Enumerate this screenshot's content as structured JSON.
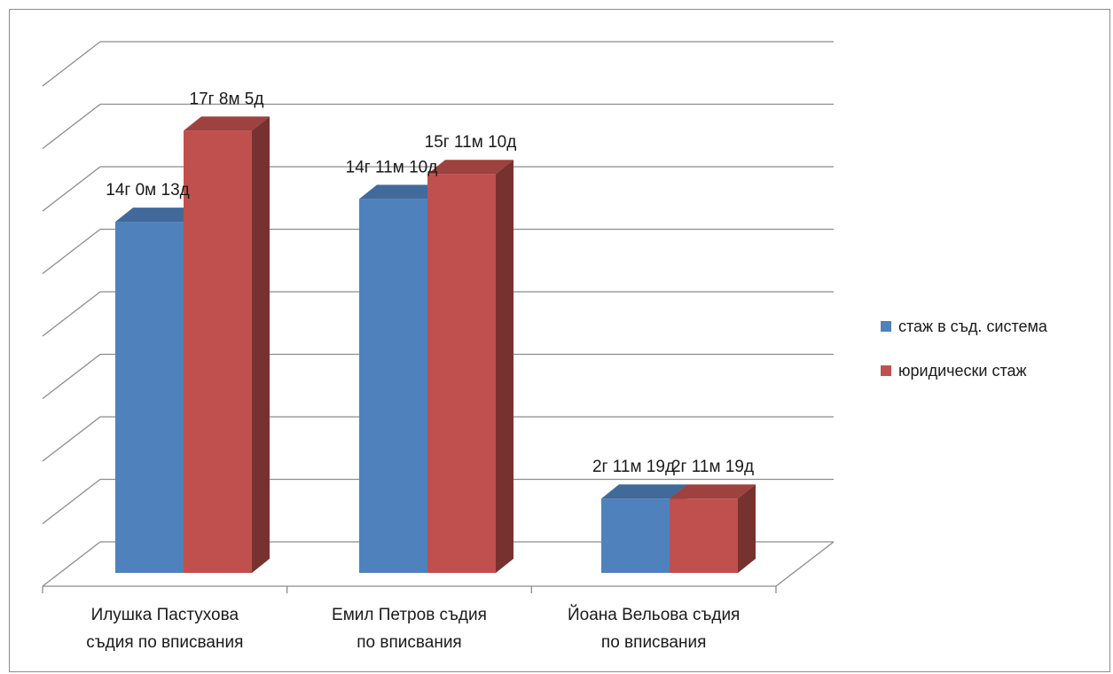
{
  "chart_data": {
    "type": "bar",
    "categories": [
      [
        "Илушка Пастухова",
        "съдия по вписвания"
      ],
      [
        "Емил Петров съдия",
        "по вписвания"
      ],
      [
        "Йоана Вельова съдия",
        "по вписвания"
      ]
    ],
    "series": [
      {
        "name": "стаж в съд. система",
        "color": "#4f81bd",
        "values": [
          14.04,
          14.95,
          2.97
        ],
        "labels": [
          "14г 0м 13д",
          "14г 11м 10д",
          "2г 11м 19д"
        ]
      },
      {
        "name": "юридически стаж",
        "color": "#c0504d",
        "values": [
          17.68,
          15.95,
          2.97
        ],
        "labels": [
          "17г 8м 5д",
          "15г 11м 10д",
          "2г 11м 19д"
        ]
      }
    ],
    "ylim": [
      0,
      20
    ],
    "grid": true,
    "legend_position": "right",
    "style": "3d-clustered-column"
  }
}
